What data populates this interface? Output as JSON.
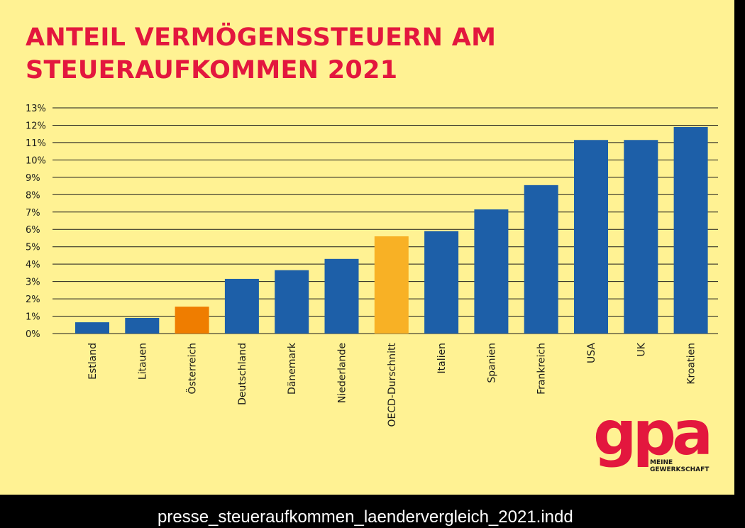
{
  "title": {
    "line1": "ANTEIL VERMÖGENSSTEUERN AM",
    "line2": "STEUERAUFKOMMEN 2021"
  },
  "chart_data": {
    "type": "bar",
    "title": "ANTEIL VERMÖGENSSTEUERN AM STEUERAUFKOMMEN 2021",
    "xlabel": "",
    "ylabel": "",
    "ylim": [
      0,
      13
    ],
    "grid": true,
    "y_tick_labels": [
      "0%",
      "1%",
      "2%",
      "3%",
      "4%",
      "5%",
      "6%",
      "7%",
      "8%",
      "9%",
      "10%",
      "11%",
      "12%",
      "13%"
    ],
    "categories": [
      "Estland",
      "Litauen",
      "Österreich",
      "Deutschland",
      "Dänemark",
      "Niederlande",
      "OECD-Durschnitt",
      "Italien",
      "Spanien",
      "Frankreich",
      "USA",
      "UK",
      "Kroatien"
    ],
    "values": [
      0.65,
      0.9,
      1.55,
      3.15,
      3.65,
      4.3,
      5.6,
      5.9,
      7.15,
      8.55,
      11.15,
      11.15,
      11.9
    ],
    "colors": [
      "#1d5fa8",
      "#1d5fa8",
      "#ef7d00",
      "#1d5fa8",
      "#1d5fa8",
      "#1d5fa8",
      "#f8b125",
      "#1d5fa8",
      "#1d5fa8",
      "#1d5fa8",
      "#1d5fa8",
      "#1d5fa8",
      "#1d5fa8"
    ]
  },
  "logo": {
    "wordmark": "gpa",
    "line1": "MEINE",
    "line2": "GEWERKSCHAFT"
  },
  "footer": {
    "filename": "presse_steueraufkommen_laendervergleich_2021.indd"
  },
  "colors": {
    "background": "#fff293",
    "title": "#e3173e",
    "bar_default": "#1d5fa8",
    "bar_austria": "#ef7d00",
    "bar_oecd": "#f8b125",
    "logo": "#e3173e"
  }
}
